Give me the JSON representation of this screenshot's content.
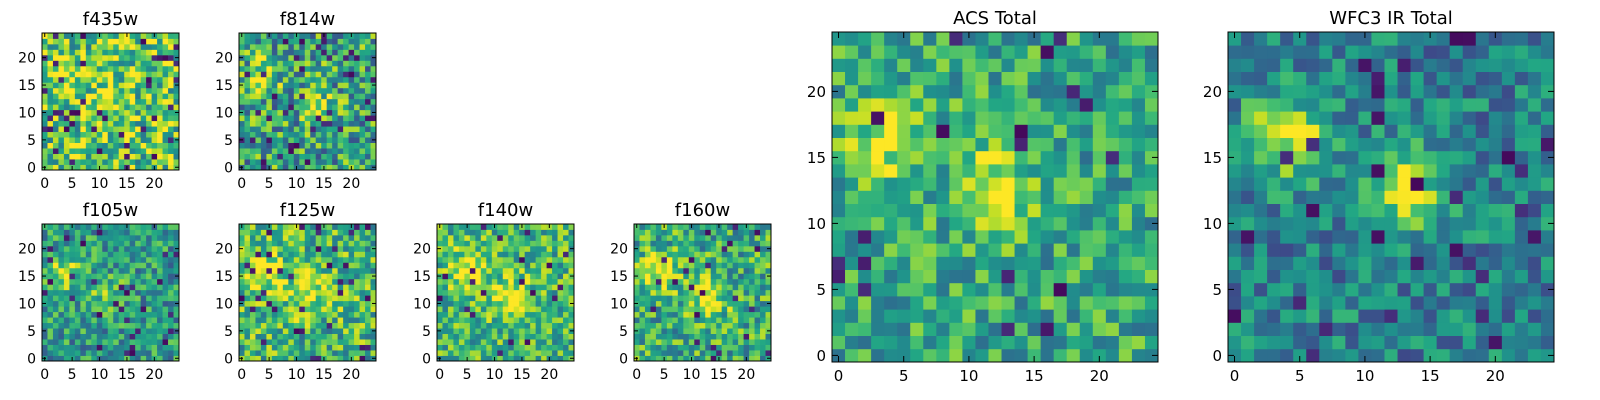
{
  "chart_data": [
    {
      "type": "heatmap",
      "title": "f435w",
      "shape": [
        25,
        25
      ],
      "xlim": [
        -0.5,
        24.5
      ],
      "ylim": [
        -0.5,
        24.5
      ],
      "xticks": [
        "0",
        "5",
        "10",
        "15",
        "20"
      ],
      "yticks": [
        "0",
        "5",
        "10",
        "15",
        "20"
      ],
      "colormap": "viridis",
      "features": [
        {
          "x": 4,
          "y": 16,
          "intensity": "high"
        },
        {
          "x": 12,
          "y": 12,
          "intensity": "medium"
        }
      ]
    },
    {
      "type": "heatmap",
      "title": "f814w",
      "shape": [
        25,
        25
      ],
      "xlim": [
        -0.5,
        24.5
      ],
      "ylim": [
        -0.5,
        24.5
      ],
      "xticks": [
        "0",
        "5",
        "10",
        "15",
        "20"
      ],
      "yticks": [
        "0",
        "5",
        "10",
        "15",
        "20"
      ],
      "colormap": "viridis",
      "features": [
        {
          "x": 4,
          "y": 17,
          "intensity": "high"
        },
        {
          "x": 14,
          "y": 11,
          "intensity": "high"
        }
      ]
    },
    {
      "type": "heatmap",
      "title": "f105w",
      "shape": [
        25,
        25
      ],
      "xlim": [
        -0.5,
        24.5
      ],
      "ylim": [
        -0.5,
        24.5
      ],
      "xticks": [
        "0",
        "5",
        "10",
        "15",
        "20"
      ],
      "yticks": [
        "0",
        "5",
        "10",
        "15",
        "20"
      ],
      "colormap": "viridis",
      "features": [
        {
          "x": 4,
          "y": 16,
          "intensity": "high"
        },
        {
          "x": 11,
          "y": 12,
          "intensity": "medium"
        }
      ]
    },
    {
      "type": "heatmap",
      "title": "f125w",
      "shape": [
        25,
        25
      ],
      "xlim": [
        -0.5,
        24.5
      ],
      "ylim": [
        -0.5,
        24.5
      ],
      "xticks": [
        "0",
        "5",
        "10",
        "15",
        "20"
      ],
      "yticks": [
        "0",
        "5",
        "10",
        "15",
        "20"
      ],
      "colormap": "viridis",
      "features": [
        {
          "x": 4,
          "y": 16,
          "intensity": "high"
        },
        {
          "x": 12,
          "y": 12,
          "intensity": "high"
        }
      ]
    },
    {
      "type": "heatmap",
      "title": "f140w",
      "shape": [
        25,
        25
      ],
      "xlim": [
        -0.5,
        24.5
      ],
      "ylim": [
        -0.5,
        24.5
      ],
      "xticks": [
        "0",
        "5",
        "10",
        "15",
        "20"
      ],
      "yticks": [
        "0",
        "5",
        "10",
        "15",
        "20"
      ],
      "colormap": "viridis",
      "features": [
        {
          "x": 5,
          "y": 16,
          "intensity": "high"
        },
        {
          "x": 13,
          "y": 11,
          "intensity": "high"
        }
      ]
    },
    {
      "type": "heatmap",
      "title": "f160w",
      "shape": [
        25,
        25
      ],
      "xlim": [
        -0.5,
        24.5
      ],
      "ylim": [
        -0.5,
        24.5
      ],
      "xticks": [
        "0",
        "5",
        "10",
        "15",
        "20"
      ],
      "yticks": [
        "0",
        "5",
        "10",
        "15",
        "20"
      ],
      "colormap": "viridis",
      "features": [
        {
          "x": 4,
          "y": 16,
          "intensity": "high"
        },
        {
          "x": 13,
          "y": 11,
          "intensity": "high"
        }
      ]
    },
    {
      "type": "heatmap",
      "title": "ACS Total",
      "shape": [
        25,
        25
      ],
      "xlim": [
        -0.5,
        24.5
      ],
      "ylim": [
        -0.5,
        24.5
      ],
      "xticks": [
        "0",
        "5",
        "10",
        "15",
        "20"
      ],
      "yticks": [
        "0",
        "5",
        "10",
        "15",
        "20"
      ],
      "colormap": "viridis",
      "features": [
        {
          "x": 4,
          "y": 16.5,
          "intensity": "high"
        },
        {
          "x": 12,
          "y": 12.5,
          "intensity": "high"
        }
      ]
    },
    {
      "type": "heatmap",
      "title": "WFC3 IR Total",
      "shape": [
        25,
        25
      ],
      "xlim": [
        -0.5,
        24.5
      ],
      "ylim": [
        -0.5,
        24.5
      ],
      "xticks": [
        "0",
        "5",
        "10",
        "15",
        "20"
      ],
      "yticks": [
        "0",
        "5",
        "10",
        "15",
        "20"
      ],
      "colormap": "viridis",
      "features": [
        {
          "x": 4,
          "y": 16.5,
          "intensity": "high"
        },
        {
          "x": 13,
          "y": 12.5,
          "intensity": "high"
        }
      ]
    }
  ]
}
